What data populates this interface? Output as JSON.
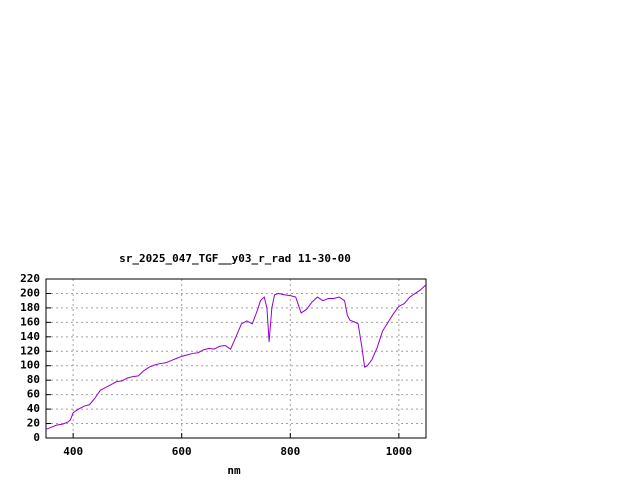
{
  "chart_data": {
    "type": "line",
    "title": "sr_2025_047_TGF__y03_r_rad 11-30-00",
    "x_label": "nm",
    "x": [
      350,
      360,
      370,
      380,
      390,
      395,
      400,
      410,
      420,
      430,
      440,
      450,
      460,
      470,
      480,
      490,
      500,
      510,
      520,
      530,
      540,
      550,
      560,
      570,
      580,
      590,
      600,
      610,
      620,
      630,
      640,
      650,
      660,
      670,
      680,
      690,
      700,
      710,
      720,
      730,
      740,
      745,
      752,
      757,
      761,
      766,
      771,
      778,
      790,
      800,
      810,
      820,
      830,
      840,
      850,
      860,
      870,
      880,
      890,
      900,
      905,
      910,
      920,
      925,
      932,
      937,
      942,
      950,
      960,
      970,
      980,
      990,
      1000,
      1010,
      1020,
      1030,
      1040,
      1050
    ],
    "series": [
      {
        "name": "sr_2025_047_TGF__y03_r_rad",
        "color": "#9400d3",
        "values": [
          12,
          15,
          18,
          19,
          22,
          25,
          35,
          40,
          44,
          46,
          55,
          66,
          70,
          74,
          78,
          79,
          83,
          85,
          86,
          93,
          98,
          101,
          103,
          104,
          107,
          110,
          113,
          115,
          117,
          118,
          122,
          124,
          123,
          127,
          128,
          123,
          140,
          158,
          162,
          158,
          178,
          190,
          195,
          180,
          133,
          180,
          198,
          200,
          198,
          197,
          195,
          173,
          178,
          188,
          195,
          190,
          193,
          193,
          195,
          190,
          170,
          163,
          160,
          158,
          125,
          98,
          100,
          108,
          125,
          148,
          160,
          172,
          182,
          186,
          195,
          200,
          205,
          212
        ]
      }
    ],
    "xlim": [
      350,
      1050
    ],
    "ylim": [
      0,
      220
    ],
    "xticks": [
      400,
      600,
      800,
      1000
    ],
    "yticks": [
      0,
      20,
      40,
      60,
      80,
      100,
      120,
      140,
      160,
      180,
      200,
      220
    ],
    "grid": true
  }
}
